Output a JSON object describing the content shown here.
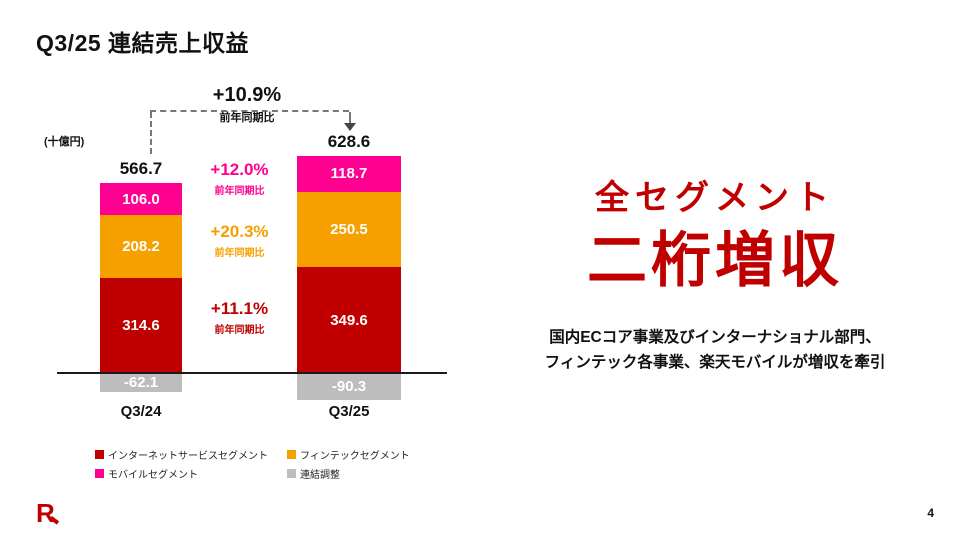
{
  "slide": {
    "title": "Q3/25 連結売上収益",
    "page_number": "4",
    "logo_name": "rakuten-r-logo"
  },
  "right_panel": {
    "headline_line1": "全セグメント",
    "headline_line2": "二桁増収",
    "subtext_line1": "国内ECコア事業及びインターナショナル部門、",
    "subtext_line2": "フィンテック各事業、楽天モバイルが増収を牽引",
    "accent_color": "#C00000"
  },
  "chart_data": {
    "type": "bar",
    "stacked": true,
    "ylabel": "(十億円)",
    "categories": [
      "Q3/24",
      "Q3/25"
    ],
    "totals": [
      566.7,
      628.6
    ],
    "series": [
      {
        "key": "internet-services",
        "name": "インターネットサービスセグメント",
        "color": "#C00000",
        "values": [
          314.6,
          349.6
        ]
      },
      {
        "key": "fintech",
        "name": "フィンテックセグメント",
        "color": "#F6A000",
        "values": [
          208.2,
          250.5
        ]
      },
      {
        "key": "mobile",
        "name": "モバイルセグメント",
        "color": "#FF0090",
        "values": [
          106.0,
          118.7
        ]
      },
      {
        "key": "consolidation-adjustment",
        "name": "連結調整",
        "color": "#BDBDBD",
        "values": [
          -62.1,
          -90.3
        ]
      }
    ],
    "growth_annotations": [
      {
        "label": "+10.9%",
        "sublabel": "前年同期比",
        "color": "#111111",
        "refers_to": "total"
      },
      {
        "label": "+12.0%",
        "sublabel": "前年同期比",
        "color": "#FF0090",
        "refers_to": "mobile"
      },
      {
        "label": "+20.3%",
        "sublabel": "前年同期比",
        "color": "#F6A000",
        "refers_to": "fintech"
      },
      {
        "label": "+11.1%",
        "sublabel": "前年同期比",
        "color": "#C00000",
        "refers_to": "internet-services"
      }
    ],
    "legend_position": "bottom",
    "grid": false
  }
}
